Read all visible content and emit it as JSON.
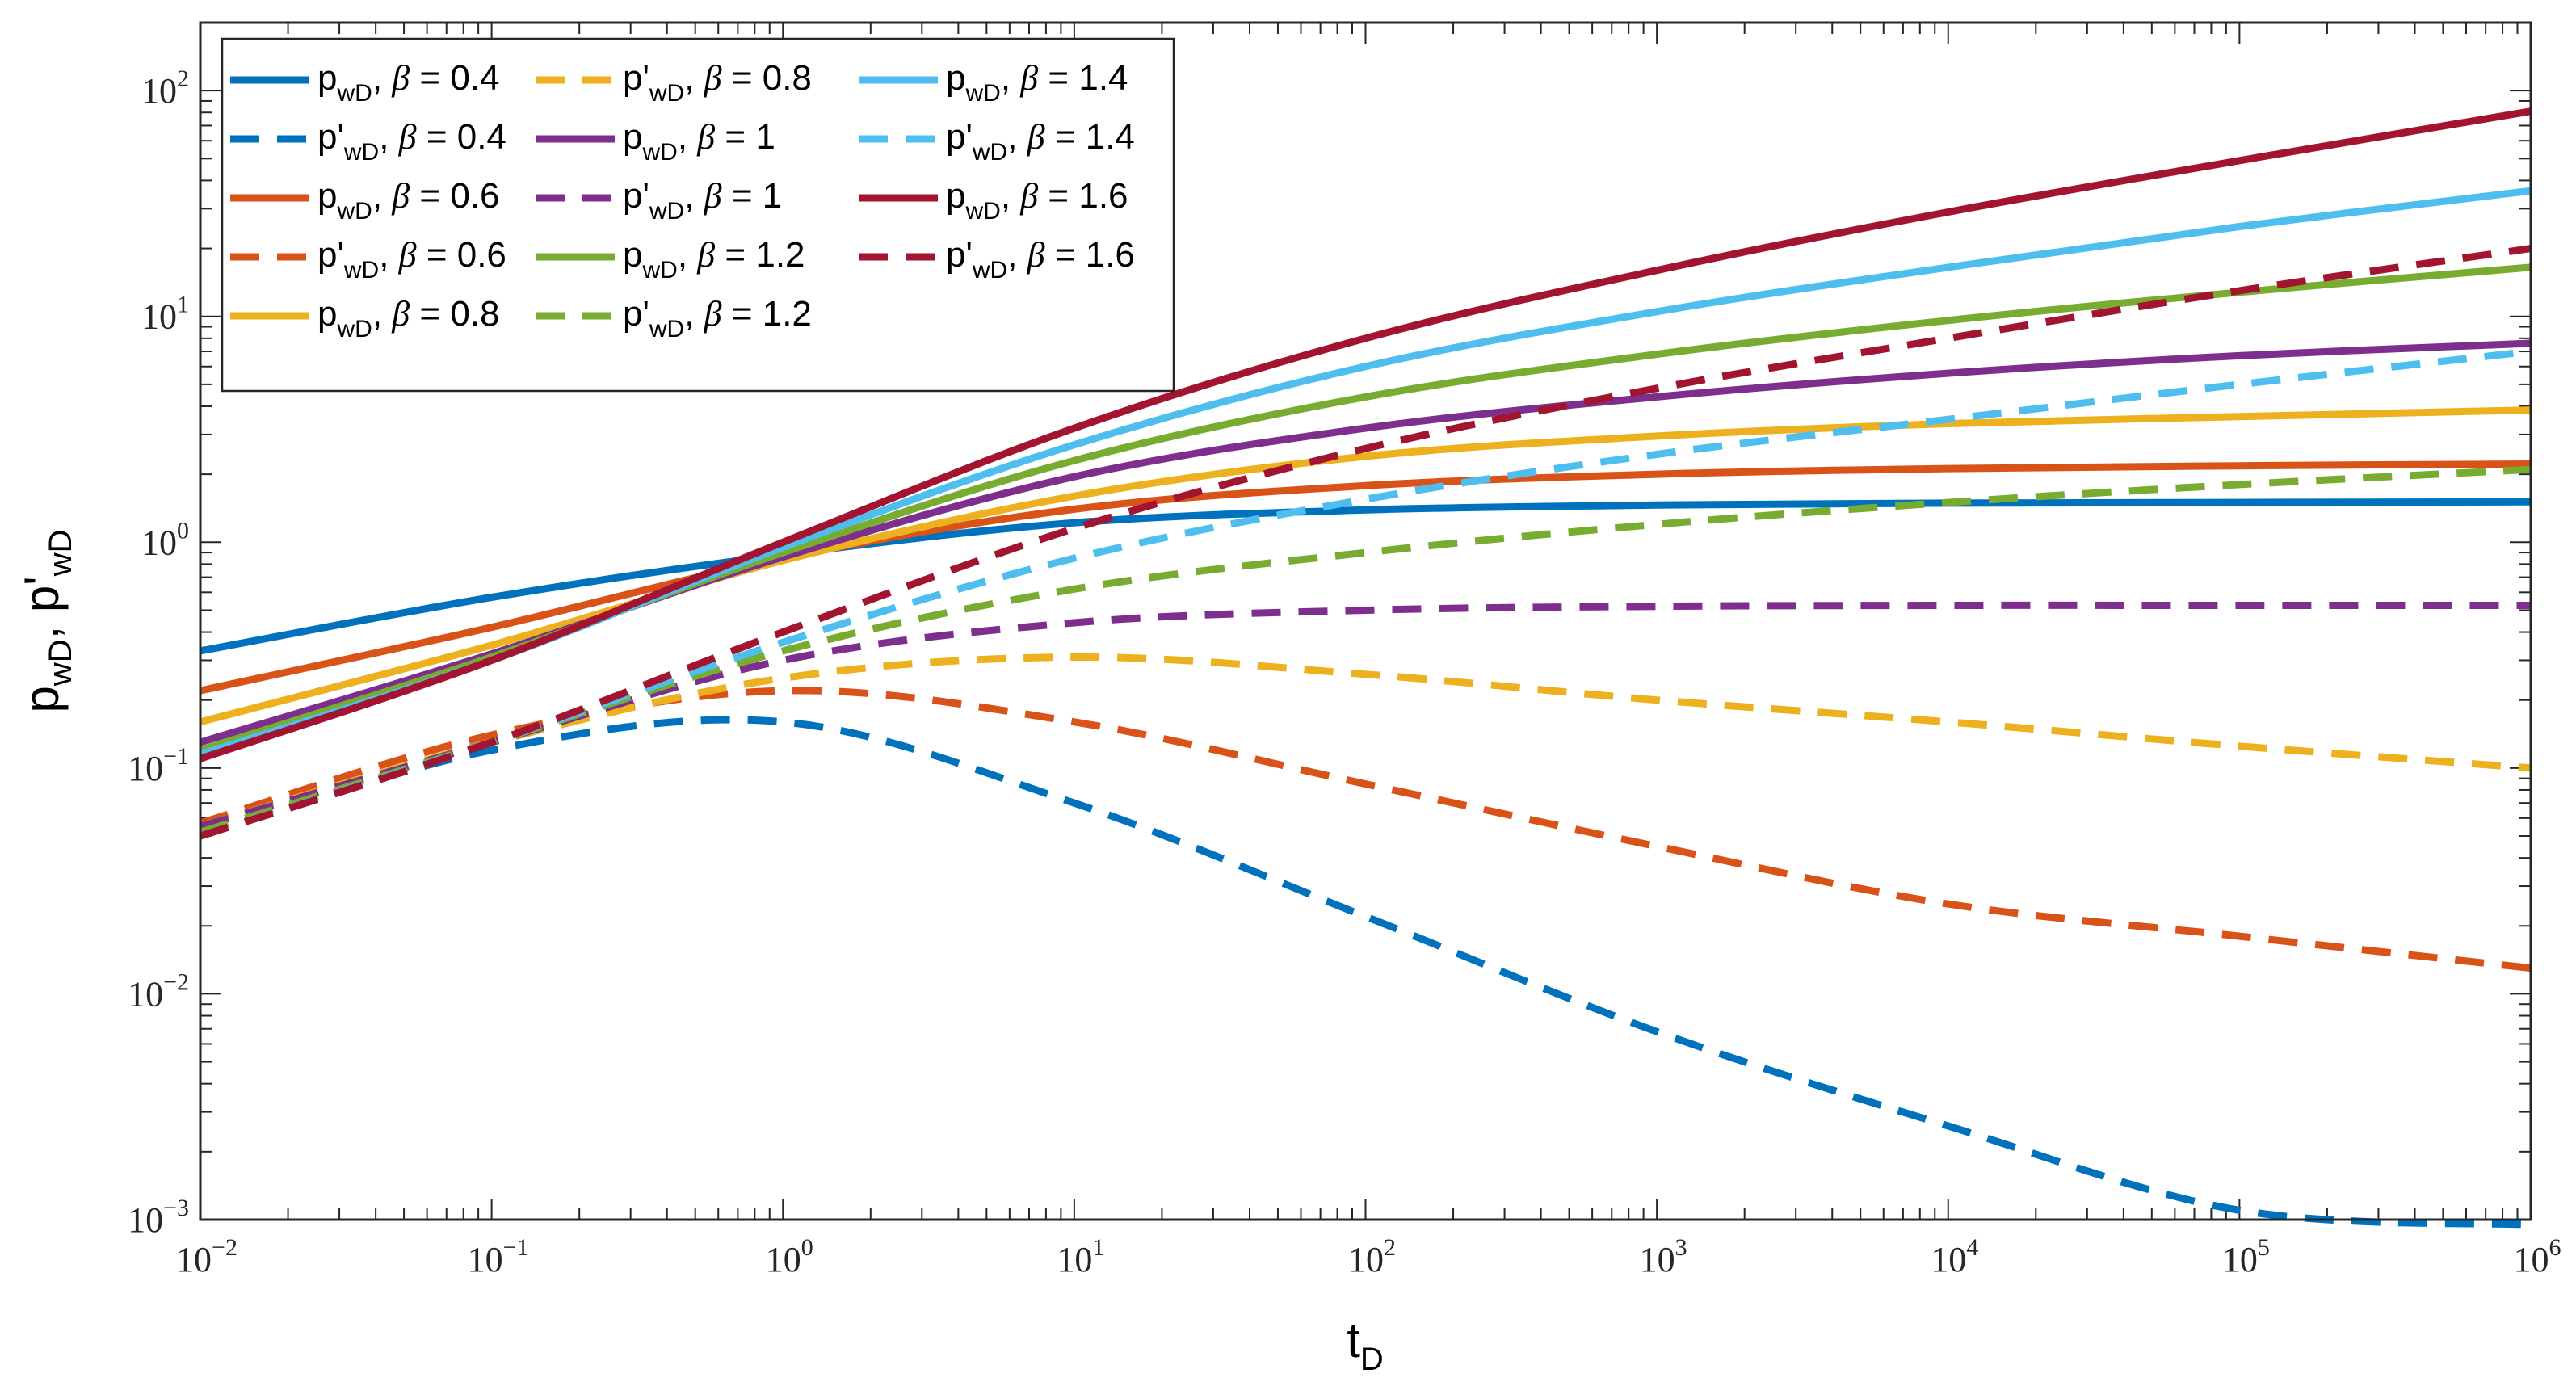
{
  "chart_data": {
    "type": "line",
    "title": "",
    "x_scale": "log",
    "y_scale": "log",
    "xlim": [
      0.01,
      1000000
    ],
    "ylim": [
      0.001,
      200
    ],
    "x_ticks": [
      {
        "base": "10",
        "exp": "−2",
        "value": 0.01
      },
      {
        "base": "10",
        "exp": "−1",
        "value": 0.1
      },
      {
        "base": "10",
        "exp": "0",
        "value": 1
      },
      {
        "base": "10",
        "exp": "1",
        "value": 10
      },
      {
        "base": "10",
        "exp": "2",
        "value": 100
      },
      {
        "base": "10",
        "exp": "3",
        "value": 1000
      },
      {
        "base": "10",
        "exp": "4",
        "value": 10000
      },
      {
        "base": "10",
        "exp": "5",
        "value": 100000
      },
      {
        "base": "10",
        "exp": "6",
        "value": 1000000
      }
    ],
    "y_ticks": [
      {
        "base": "10",
        "exp": "−3",
        "value": 0.001
      },
      {
        "base": "10",
        "exp": "−2",
        "value": 0.01
      },
      {
        "base": "10",
        "exp": "−1",
        "value": 0.1
      },
      {
        "base": "10",
        "exp": "0",
        "value": 1
      },
      {
        "base": "10",
        "exp": "1",
        "value": 10
      },
      {
        "base": "10",
        "exp": "2",
        "value": 100
      }
    ],
    "xlabel": {
      "main": "t",
      "sub": "D"
    },
    "ylabel": {
      "a_main": "p",
      "a_sub": "wD",
      "sep": ", ",
      "b_main": "p'",
      "b_sub": "wD"
    },
    "legend_location": "top-left",
    "legend_columns": 3,
    "x": [
      0.01,
      0.1,
      1,
      10,
      100,
      1000,
      10000,
      100000,
      1000000
    ],
    "series": [
      {
        "name": "pwD, β = 0.4",
        "main": "p",
        "sub": "wD",
        "beta": "β",
        "value_text": " = 0.4",
        "color": "#0072BD",
        "dash": false,
        "values": [
          0.33,
          0.57,
          0.88,
          1.22,
          1.39,
          1.46,
          1.49,
          1.5,
          1.51
        ]
      },
      {
        "name": "p'wD, β = 0.4",
        "main": "p'",
        "sub": "wD",
        "beta": "β",
        "value_text": " = 0.4",
        "color": "#0072BD",
        "dash": true,
        "values": [
          0.05,
          0.12,
          0.16,
          0.07,
          0.022,
          0.0068,
          0.0026,
          0.0011,
          0.00095
        ]
      },
      {
        "name": "pwD, β = 0.6",
        "main": "p",
        "sub": "wD",
        "beta": "β",
        "value_text": " = 0.6",
        "color": "#D95319",
        "dash": false,
        "values": [
          0.22,
          0.42,
          0.85,
          1.4,
          1.78,
          2.0,
          2.12,
          2.18,
          2.22
        ]
      },
      {
        "name": "p'wD, β = 0.6",
        "main": "p'",
        "sub": "wD",
        "beta": "β",
        "value_text": " = 0.6",
        "color": "#D95319",
        "dash": true,
        "values": [
          0.057,
          0.14,
          0.22,
          0.16,
          0.085,
          0.045,
          0.025,
          0.018,
          0.013
        ]
      },
      {
        "name": "pwD, β = 0.8",
        "main": "p",
        "sub": "wD",
        "beta": "β",
        "value_text": " = 0.8",
        "color": "#EDB120",
        "dash": false,
        "values": [
          0.16,
          0.35,
          0.83,
          1.6,
          2.4,
          2.95,
          3.35,
          3.6,
          3.85
        ]
      },
      {
        "name": "p'wD, β = 0.8",
        "main": "p'",
        "sub": "wD",
        "beta": "β",
        "value_text": " = 0.8",
        "color": "#EDB120",
        "dash": true,
        "values": [
          0.055,
          0.13,
          0.25,
          0.31,
          0.26,
          0.2,
          0.16,
          0.125,
          0.1
        ]
      },
      {
        "name": "pwD, β = 1",
        "main": "p",
        "sub": "wD",
        "beta": "β",
        "value_text": " = 1",
        "color": "#7E2F8E",
        "dash": false,
        "values": [
          0.13,
          0.32,
          0.86,
          1.95,
          3.2,
          4.4,
          5.6,
          6.7,
          7.6
        ]
      },
      {
        "name": "p'wD, β = 1",
        "main": "p'",
        "sub": "wD",
        "beta": "β",
        "value_text": " = 1",
        "color": "#7E2F8E",
        "dash": true,
        "values": [
          0.055,
          0.13,
          0.3,
          0.44,
          0.5,
          0.52,
          0.525,
          0.525,
          0.525
        ]
      },
      {
        "name": "pwD, β = 1.2",
        "main": "p",
        "sub": "wD",
        "beta": "β",
        "value_text": " = 1.2",
        "color": "#77AC30",
        "dash": false,
        "values": [
          0.12,
          0.31,
          0.9,
          2.3,
          4.4,
          6.8,
          9.6,
          12.8,
          16.5
        ]
      },
      {
        "name": "p'wD, β = 1.2",
        "main": "p'",
        "sub": "wD",
        "beta": "β",
        "value_text": " = 1.2",
        "color": "#77AC30",
        "dash": true,
        "values": [
          0.052,
          0.13,
          0.33,
          0.62,
          0.9,
          1.2,
          1.5,
          1.8,
          2.1
        ]
      },
      {
        "name": "pwD, β = 1.4",
        "main": "p",
        "sub": "wD",
        "beta": "β",
        "value_text": " = 1.4",
        "color": "#4DBEEE",
        "dash": false,
        "values": [
          0.115,
          0.3,
          0.95,
          2.7,
          6.0,
          10.5,
          16.5,
          25.0,
          36.0
        ]
      },
      {
        "name": "p'wD, β = 1.4",
        "main": "p'",
        "sub": "wD",
        "beta": "β",
        "value_text": " = 1.4",
        "color": "#4DBEEE",
        "dash": true,
        "values": [
          0.05,
          0.13,
          0.36,
          0.85,
          1.55,
          2.45,
          3.5,
          5.0,
          7.0
        ]
      },
      {
        "name": "pwD, β = 1.6",
        "main": "p",
        "sub": "wD",
        "beta": "β",
        "value_text": " = 1.6",
        "color": "#A2142F",
        "dash": false,
        "values": [
          0.11,
          0.3,
          1.0,
          3.2,
          8.0,
          16.0,
          29.0,
          49.0,
          81.0
        ]
      },
      {
        "name": "p'wD, β = 1.6",
        "main": "p'",
        "sub": "wD",
        "beta": "β",
        "value_text": " = 1.6",
        "color": "#A2142F",
        "dash": true,
        "values": [
          0.05,
          0.13,
          0.4,
          1.15,
          2.6,
          4.8,
          8.0,
          13.0,
          20.0
        ]
      }
    ]
  }
}
